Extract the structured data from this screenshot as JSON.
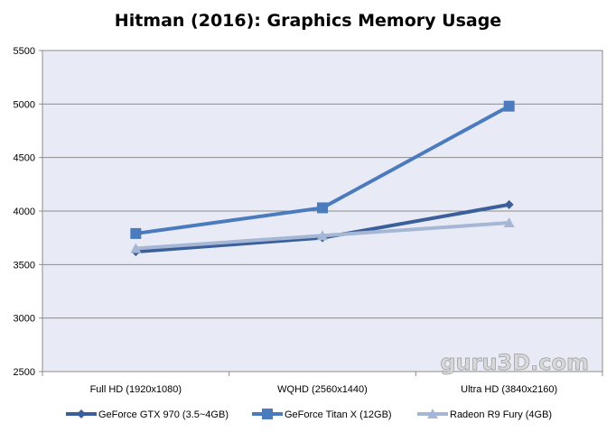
{
  "chart_data": {
    "type": "line",
    "title": "Hitman (2016): Graphics Memory Usage",
    "xlabel": "",
    "ylabel": "",
    "categories": [
      "Full HD (1920x1080)",
      "WQHD (2560x1440)",
      "Ultra HD (3840x2160)"
    ],
    "ylim": [
      2500,
      5500
    ],
    "yticks": [
      2500,
      3000,
      3500,
      4000,
      4500,
      5000,
      5500
    ],
    "grid": true,
    "legend": "bottom",
    "series": [
      {
        "name": "GeForce GTX 970 (3.5~4GB)",
        "values": [
          3620,
          3750,
          4060
        ],
        "color": "#3a5f9a",
        "marker": "diamond"
      },
      {
        "name": "GeForce Titan X (12GB)",
        "values": [
          3790,
          4030,
          4980
        ],
        "color": "#4a7bbf",
        "marker": "square"
      },
      {
        "name": "Radeon R9 Fury (4GB)",
        "values": [
          3650,
          3770,
          3890
        ],
        "color": "#a5b7d4",
        "marker": "triangle"
      }
    ]
  },
  "watermark": "guru3D.com"
}
